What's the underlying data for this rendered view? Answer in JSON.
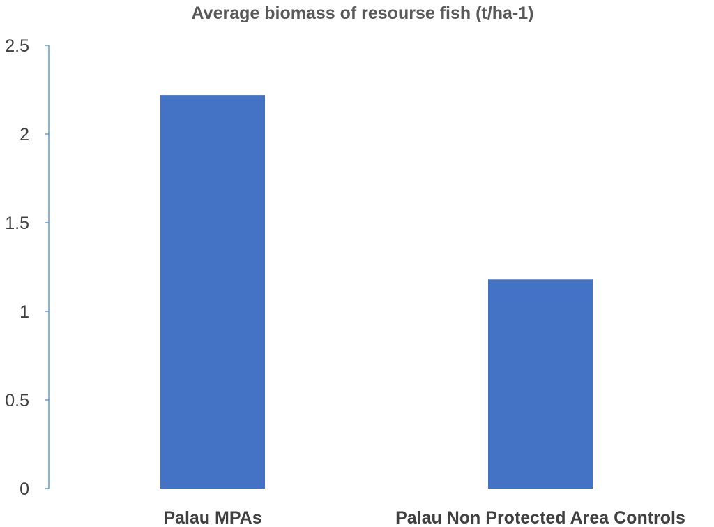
{
  "chart_data": {
    "type": "bar",
    "title": "Average biomass of resourse fish (t/ha-1)",
    "xlabel": "",
    "ylabel": "",
    "categories": [
      "Palau MPAs",
      "Palau Non Protected Area Controls"
    ],
    "values": [
      2.22,
      1.18
    ],
    "ylim": [
      0,
      2.5
    ],
    "yticks": [
      "0",
      "0.5",
      "1",
      "1.5",
      "2",
      "2.5"
    ],
    "grid": false,
    "legend": "none",
    "colors": {
      "bar": "#4472C4",
      "axis": "#5B9BD5"
    }
  }
}
